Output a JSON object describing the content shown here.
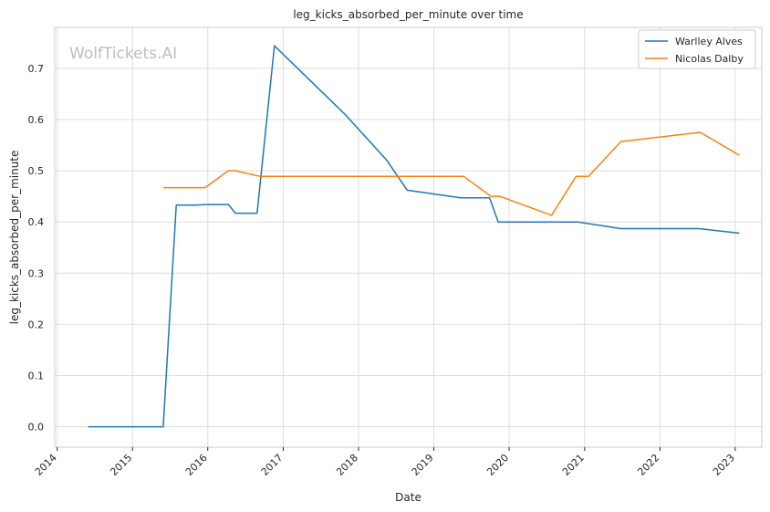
{
  "chart_data": {
    "type": "line",
    "title": "leg_kicks_absorbed_per_minute over time",
    "xlabel": "Date",
    "ylabel": "leg_kicks_absorbed_per_minute",
    "watermark": "WolfTickets.AI",
    "xlim": [
      "2013-12-20",
      "2023-05-10"
    ],
    "ylim": [
      -0.04,
      0.78
    ],
    "x_ticks": [
      "2014",
      "2015",
      "2016",
      "2017",
      "2018",
      "2019",
      "2020",
      "2021",
      "2022",
      "2023"
    ],
    "y_ticks": [
      "0.0",
      "0.1",
      "0.2",
      "0.3",
      "0.4",
      "0.5",
      "0.6",
      "0.7"
    ],
    "grid": true,
    "legend_position": "top-right",
    "series": [
      {
        "name": "Warlley Alves",
        "color": "#1f77b4",
        "points": [
          [
            "2014-05-31",
            0.0
          ],
          [
            "2015-05-30",
            0.0
          ],
          [
            "2015-08-01",
            0.433
          ],
          [
            "2015-11-07",
            0.433
          ],
          [
            "2015-12-19",
            0.434
          ],
          [
            "2016-04-10",
            0.434
          ],
          [
            "2016-05-14",
            0.417
          ],
          [
            "2016-08-27",
            0.417
          ],
          [
            "2016-11-19",
            0.744
          ],
          [
            "2017-10-28",
            0.61
          ],
          [
            "2018-05-19",
            0.52
          ],
          [
            "2018-08-25",
            0.462
          ],
          [
            "2019-05-11",
            0.447
          ],
          [
            "2019-09-28",
            0.447
          ],
          [
            "2019-11-09",
            0.4
          ],
          [
            "2020-11-28",
            0.4
          ],
          [
            "2021-06-26",
            0.387
          ],
          [
            "2022-07-09",
            0.387
          ],
          [
            "2023-01-21",
            0.378
          ]
        ]
      },
      {
        "name": "Nicolas Dalby",
        "color": "#ff7f0e",
        "points": [
          [
            "2015-05-30",
            0.467
          ],
          [
            "2015-12-19",
            0.467
          ],
          [
            "2016-04-10",
            0.5
          ],
          [
            "2016-05-14",
            0.5
          ],
          [
            "2016-09-10",
            0.489
          ],
          [
            "2019-05-25",
            0.489
          ],
          [
            "2019-10-05",
            0.45
          ],
          [
            "2019-11-16",
            0.45
          ],
          [
            "2020-07-25",
            0.413
          ],
          [
            "2020-11-21",
            0.489
          ],
          [
            "2021-01-20",
            0.489
          ],
          [
            "2021-06-26",
            0.557
          ],
          [
            "2022-07-16",
            0.575
          ],
          [
            "2023-01-21",
            0.53
          ]
        ]
      }
    ]
  }
}
